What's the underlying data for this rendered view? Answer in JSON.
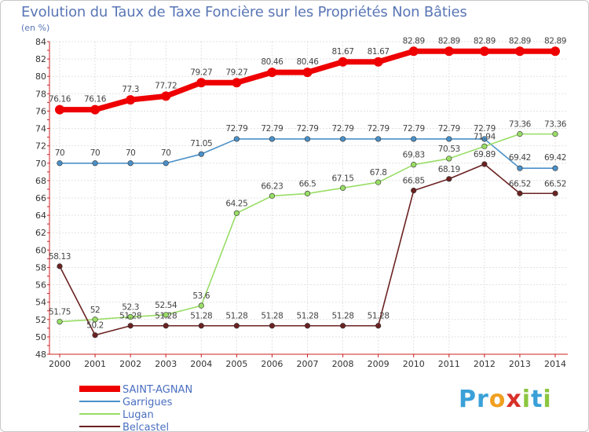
{
  "chart_data": {
    "type": "line",
    "title": "Evolution du Taux de Taxe Foncière sur les Propriétés Non Bâties",
    "subtitle": "(en %)",
    "xlabel": "",
    "ylabel": "",
    "ylim": [
      48,
      84
    ],
    "y_ticks": [
      48,
      50,
      52,
      54,
      56,
      58,
      60,
      62,
      64,
      66,
      68,
      70,
      72,
      74,
      76,
      78,
      80,
      82,
      84
    ],
    "x": [
      "2000",
      "2001",
      "2002",
      "2003",
      "2004",
      "2005",
      "2006",
      "2007",
      "2008",
      "2009",
      "2010",
      "2011",
      "2012",
      "2013",
      "2014"
    ],
    "grid": true,
    "legend_position": "bottom-left",
    "series": [
      {
        "name": "SAINT-AGNAN",
        "color": "#ee0000",
        "style": "thick",
        "values": [
          76.16,
          76.16,
          77.3,
          77.72,
          79.27,
          79.27,
          80.46,
          80.46,
          81.67,
          81.67,
          82.89,
          82.89,
          82.89,
          82.89,
          82.89
        ],
        "labels": [
          "76.16",
          "76.16",
          "77.3",
          "77.72",
          "79.27",
          "79.27",
          "80.46",
          "80.46",
          "81.67",
          "81.67",
          "82.89",
          "82.89",
          "82.89",
          "82.89",
          "82.89"
        ]
      },
      {
        "name": "Garrigues",
        "color": "#4a90c8",
        "style": "thin",
        "values": [
          70,
          70,
          70,
          70,
          71.05,
          72.79,
          72.79,
          72.79,
          72.79,
          72.79,
          72.79,
          72.79,
          72.79,
          69.42,
          69.42
        ],
        "labels": [
          "70",
          "70",
          "70",
          "70",
          "71.05",
          "72.79",
          "72.79",
          "72.79",
          "72.79",
          "72.79",
          "72.79",
          "72.79",
          "72.79",
          "69.42",
          "69.42"
        ]
      },
      {
        "name": "Lugan",
        "color": "#99dd66",
        "style": "thin",
        "values": [
          51.75,
          52,
          52.3,
          52.54,
          53.6,
          64.25,
          66.23,
          66.5,
          67.15,
          67.8,
          69.83,
          70.53,
          71.94,
          73.36,
          73.36
        ],
        "labels": [
          "51.75",
          "52",
          "52.3",
          "52.54",
          "53.6",
          "64.25",
          "66.23",
          "66.5",
          "67.15",
          "67.8",
          "69.83",
          "70.53",
          "71.94",
          "73.36",
          "73.36"
        ]
      },
      {
        "name": "Belcastel",
        "color": "#6b2222",
        "style": "thin",
        "values": [
          58.13,
          50.2,
          51.28,
          51.28,
          51.28,
          51.28,
          51.28,
          51.28,
          51.28,
          51.28,
          66.85,
          68.19,
          69.89,
          66.52,
          66.52
        ],
        "labels": [
          "58.13",
          "50.2",
          "51.28",
          "51.28",
          "51.28",
          "51.28",
          "51.28",
          "51.28",
          "51.28",
          "51.28",
          "66.85",
          "68.19",
          "69.89",
          "66.52",
          "66.52"
        ]
      }
    ]
  },
  "logo": {
    "letters": [
      "P",
      "r",
      "o",
      "x",
      "i",
      "t",
      "i"
    ],
    "colors": [
      "#3aa0d8",
      "#3aa0d8",
      "#f0a020",
      "#d8302a",
      "#8cc63e",
      "#3aa0d8",
      "#8cc63e"
    ]
  }
}
